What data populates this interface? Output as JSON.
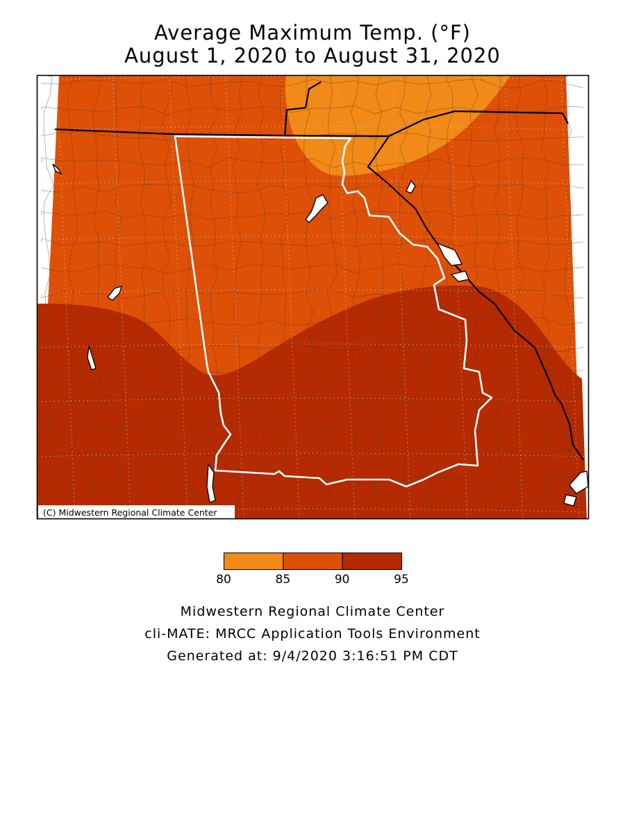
{
  "title": {
    "line1": "Average Maximum Temp. (°F)",
    "line2": "August 1, 2020 to August 31, 2020"
  },
  "map": {
    "copyright": "(C) Midwestern Regional Climate Center",
    "colors": {
      "band_80_85": "#f18a17",
      "band_85_90": "#de5006",
      "band_90_95": "#b52a00",
      "state_outline": "#ffffff",
      "borders": "#000000"
    }
  },
  "legend": {
    "bins": [
      {
        "from": 80,
        "to": 85,
        "color": "#f18a17"
      },
      {
        "from": 85,
        "to": 90,
        "color": "#de5006"
      },
      {
        "from": 90,
        "to": 95,
        "color": "#b52a00"
      }
    ],
    "ticks": [
      "80",
      "85",
      "90",
      "95"
    ]
  },
  "footer": {
    "line1": "Midwestern Regional Climate Center",
    "line2": "cli-MATE: MRCC Application Tools Environment",
    "line3": "Generated at: 9/4/2020 3:16:51 PM CDT"
  }
}
